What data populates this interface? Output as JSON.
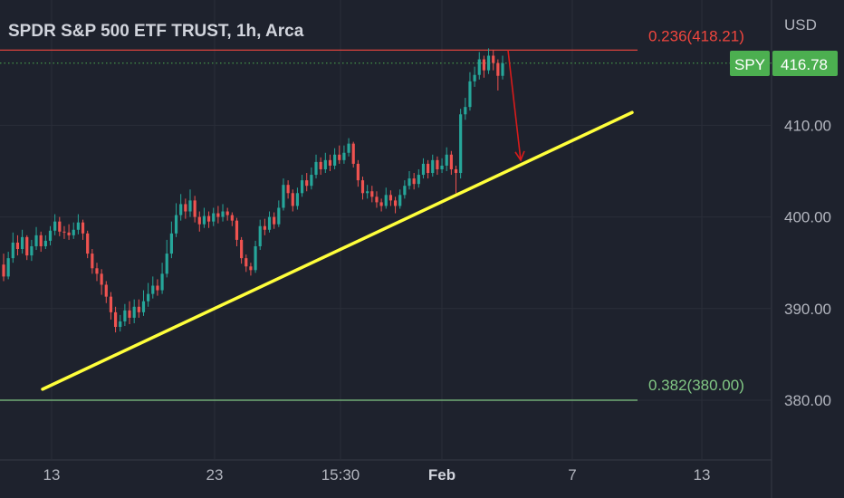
{
  "header": {
    "title": "SPDR S&P 500 ETF TRUST, 1h, Arca"
  },
  "price_axis": {
    "currency": "USD",
    "ticks": [
      "410.00",
      "400.00",
      "390.00",
      "380.00"
    ]
  },
  "time_axis": {
    "ticks": [
      "13",
      "23",
      "15:30",
      "Feb",
      "7",
      "13"
    ]
  },
  "symbol_badge": {
    "symbol": "SPY",
    "price": "416.78"
  },
  "fib_levels": [
    {
      "label": "0.236(418.21)",
      "value": 418.21,
      "color": "#f0463e"
    },
    {
      "label": "0.382(380.00)",
      "value": 380.0,
      "color": "#81c784"
    }
  ],
  "colors": {
    "background": "#1e222d",
    "up": "#26a69a",
    "down": "#ef5350",
    "trendline": "#ffff3b",
    "arrow": "#d81b1b",
    "badge": "#4caf50",
    "last_price_line": "#4caf50"
  },
  "chart_data": {
    "type": "candlestick",
    "title": "SPDR S&P 500 ETF TRUST, 1h, Arca",
    "ylabel": "USD",
    "ylim": [
      375,
      422
    ],
    "x_ticks": [
      "13",
      "23",
      "15:30",
      "Feb",
      "7",
      "13"
    ],
    "y_ticks": [
      410,
      400,
      390,
      380
    ],
    "last_price": 416.78,
    "candles": [
      [
        394.8,
        393.5,
        396.0,
        393.0
      ],
      [
        393.5,
        395.5,
        396.2,
        393.2
      ],
      [
        395.5,
        397.2,
        398.3,
        395.0
      ],
      [
        397.2,
        396.5,
        398.0,
        395.8
      ],
      [
        396.5,
        397.8,
        398.6,
        396.0
      ],
      [
        397.8,
        395.8,
        398.0,
        395.3
      ],
      [
        395.8,
        396.8,
        397.5,
        395.2
      ],
      [
        396.8,
        398.0,
        398.9,
        396.4
      ],
      [
        398.0,
        396.8,
        398.4,
        396.2
      ],
      [
        396.8,
        397.4,
        398.0,
        396.5
      ],
      [
        397.4,
        398.5,
        399.0,
        396.9
      ],
      [
        398.5,
        399.5,
        400.3,
        398.0
      ],
      [
        399.5,
        398.4,
        400.0,
        397.9
      ],
      [
        398.4,
        398.3,
        399.0,
        397.6
      ],
      [
        398.3,
        398.0,
        399.2,
        397.5
      ],
      [
        398.0,
        398.6,
        399.4,
        397.6
      ],
      [
        398.6,
        399.4,
        400.3,
        398.1
      ],
      [
        399.4,
        398.2,
        399.7,
        397.5
      ],
      [
        398.2,
        396.0,
        398.5,
        395.5
      ],
      [
        396.0,
        394.4,
        396.5,
        393.8
      ],
      [
        394.4,
        393.8,
        395.0,
        393.0
      ],
      [
        393.8,
        392.6,
        394.3,
        391.5
      ],
      [
        392.6,
        391.3,
        393.0,
        390.6
      ],
      [
        391.3,
        389.6,
        391.8,
        388.8
      ],
      [
        389.6,
        388.0,
        390.2,
        387.4
      ],
      [
        388.0,
        388.6,
        389.3,
        387.5
      ],
      [
        388.6,
        389.8,
        390.5,
        388.1
      ],
      [
        389.8,
        389.0,
        390.8,
        388.3
      ],
      [
        389.0,
        390.2,
        391.0,
        388.4
      ],
      [
        390.2,
        389.6,
        391.0,
        389.0
      ],
      [
        389.6,
        390.8,
        392.0,
        389.2
      ],
      [
        390.8,
        391.6,
        392.8,
        390.2
      ],
      [
        391.6,
        392.5,
        393.5,
        391.1
      ],
      [
        392.5,
        392.0,
        393.2,
        391.4
      ],
      [
        392.0,
        393.8,
        395.0,
        391.6
      ],
      [
        393.8,
        396.0,
        397.5,
        393.4
      ],
      [
        396.0,
        398.2,
        399.5,
        395.5
      ],
      [
        398.2,
        400.2,
        401.5,
        397.8
      ],
      [
        400.2,
        401.4,
        402.5,
        399.6
      ],
      [
        401.4,
        400.6,
        402.0,
        399.8
      ],
      [
        400.6,
        401.8,
        403.0,
        400.0
      ],
      [
        401.8,
        400.0,
        402.3,
        399.4
      ],
      [
        400.0,
        399.2,
        400.6,
        398.4
      ],
      [
        399.2,
        400.1,
        401.0,
        398.8
      ],
      [
        400.1,
        399.5,
        400.6,
        398.8
      ],
      [
        399.5,
        400.4,
        401.0,
        399.0
      ],
      [
        400.4,
        400.0,
        401.2,
        399.3
      ],
      [
        400.0,
        400.6,
        401.4,
        399.5
      ],
      [
        400.6,
        400.2,
        401.0,
        399.6
      ],
      [
        400.2,
        399.6,
        400.5,
        399.0
      ],
      [
        399.6,
        397.5,
        399.9,
        396.8
      ],
      [
        397.5,
        395.5,
        397.8,
        394.9
      ],
      [
        395.5,
        394.6,
        395.9,
        394.0
      ],
      [
        394.6,
        394.2,
        395.0,
        393.6
      ],
      [
        394.2,
        396.8,
        397.4,
        393.9
      ],
      [
        396.8,
        399.0,
        399.7,
        396.4
      ],
      [
        399.0,
        398.6,
        399.8,
        398.0
      ],
      [
        398.6,
        400.0,
        400.6,
        398.3
      ],
      [
        400.0,
        399.2,
        400.5,
        398.7
      ],
      [
        399.2,
        401.0,
        401.8,
        398.9
      ],
      [
        401.0,
        403.5,
        404.2,
        400.7
      ],
      [
        403.5,
        402.6,
        404.0,
        402.0
      ],
      [
        402.6,
        401.2,
        403.0,
        400.6
      ],
      [
        401.2,
        402.6,
        403.2,
        400.8
      ],
      [
        402.6,
        404.0,
        404.6,
        402.2
      ],
      [
        404.0,
        403.4,
        404.8,
        402.8
      ],
      [
        403.4,
        404.6,
        405.4,
        403.0
      ],
      [
        404.6,
        406.0,
        406.8,
        404.2
      ],
      [
        406.0,
        405.2,
        406.5,
        404.6
      ],
      [
        405.2,
        406.2,
        407.0,
        404.8
      ],
      [
        406.2,
        405.6,
        406.8,
        405.0
      ],
      [
        405.6,
        406.8,
        407.5,
        405.2
      ],
      [
        406.8,
        406.2,
        407.8,
        405.8
      ],
      [
        406.2,
        407.0,
        407.8,
        405.8
      ],
      [
        407.0,
        408.0,
        408.6,
        406.6
      ],
      [
        408.0,
        405.8,
        408.2,
        405.4
      ],
      [
        405.8,
        404.0,
        406.2,
        403.3
      ],
      [
        404.0,
        402.6,
        404.4,
        401.9
      ],
      [
        402.6,
        402.8,
        403.5,
        402.0
      ],
      [
        402.8,
        402.2,
        403.4,
        401.6
      ],
      [
        402.2,
        401.6,
        402.8,
        401.0
      ],
      [
        401.6,
        401.2,
        402.0,
        400.6
      ],
      [
        401.2,
        402.4,
        403.2,
        400.9
      ],
      [
        402.4,
        401.8,
        402.9,
        401.2
      ],
      [
        401.8,
        401.2,
        402.2,
        400.4
      ],
      [
        401.2,
        402.4,
        403.0,
        400.9
      ],
      [
        402.4,
        403.4,
        404.0,
        402.0
      ],
      [
        403.4,
        404.2,
        405.0,
        403.0
      ],
      [
        404.2,
        403.6,
        404.8,
        403.0
      ],
      [
        403.6,
        404.6,
        405.2,
        403.2
      ],
      [
        404.6,
        405.8,
        406.4,
        404.2
      ],
      [
        405.8,
        404.8,
        406.2,
        404.2
      ],
      [
        404.8,
        406.2,
        406.8,
        404.4
      ],
      [
        406.2,
        405.2,
        406.6,
        404.6
      ],
      [
        405.2,
        405.6,
        406.4,
        404.8
      ],
      [
        405.6,
        406.8,
        407.6,
        405.0
      ],
      [
        406.8,
        405.2,
        407.2,
        404.6
      ],
      [
        405.2,
        404.8,
        405.6,
        402.6
      ],
      [
        404.8,
        411.2,
        411.8,
        404.2
      ],
      [
        411.2,
        412.0,
        413.0,
        410.6
      ],
      [
        412.0,
        414.8,
        415.8,
        411.6
      ],
      [
        414.8,
        415.5,
        416.4,
        414.2
      ],
      [
        415.5,
        417.2,
        418.0,
        415.0
      ],
      [
        417.2,
        416.0,
        417.6,
        415.2
      ],
      [
        416.0,
        417.6,
        418.4,
        415.6
      ],
      [
        417.6,
        416.8,
        418.21,
        416.0
      ],
      [
        416.8,
        415.4,
        417.2,
        413.8
      ],
      [
        415.4,
        416.78,
        417.6,
        415.0
      ]
    ],
    "trendline": [
      {
        "x": "2023-01-10",
        "y": 381.2
      },
      {
        "x": "2023-02-10",
        "y": 411.4
      }
    ],
    "annotations": [
      {
        "type": "arrow",
        "from": 418.2,
        "to": 406.0
      }
    ]
  }
}
